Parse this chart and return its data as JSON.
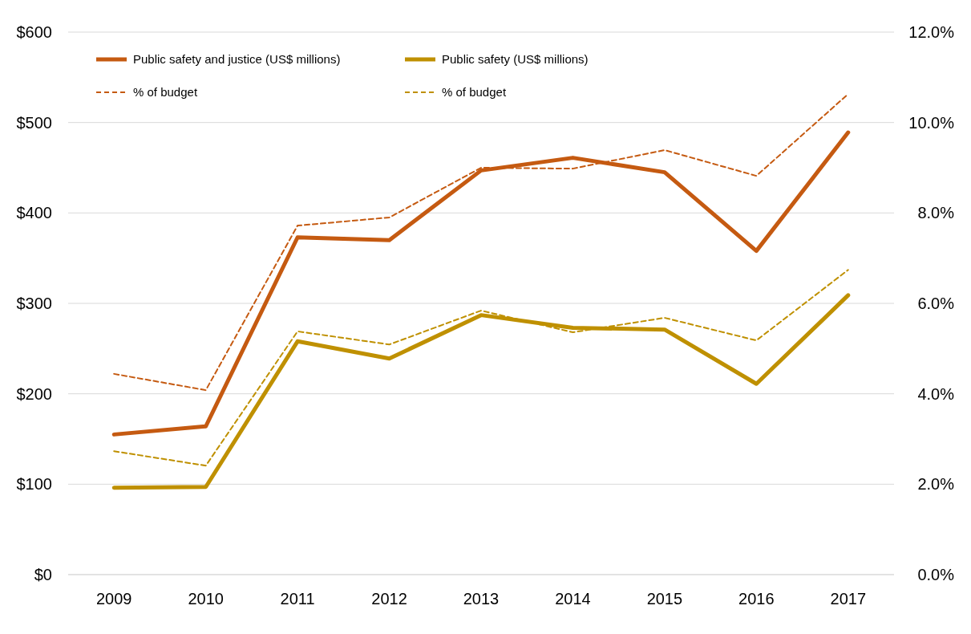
{
  "chart_data": {
    "type": "line",
    "categories": [
      "2009",
      "2010",
      "2011",
      "2012",
      "2013",
      "2014",
      "2015",
      "2016",
      "2017"
    ],
    "series": [
      {
        "name": "Public safety and justice (US$ millions)",
        "color": "#c55a11",
        "line_style": "solid",
        "values": [
          155,
          164,
          373,
          370,
          447,
          461,
          445,
          358,
          489
        ]
      },
      {
        "name": "Public safety (US$ millions)",
        "color": "#bf9000",
        "line_style": "solid",
        "values": [
          96,
          97,
          258,
          239,
          287,
          273,
          271,
          211,
          309
        ]
      },
      {
        "name": "% of budget",
        "color": "#c55a11",
        "line_style": "dashed",
        "axis": "y2",
        "values": [
          4.44,
          4.08,
          7.72,
          7.9,
          9.0,
          8.98,
          9.39,
          8.82,
          10.63
        ]
      },
      {
        "name": "% of budget",
        "color": "#bf9000",
        "line_style": "dashed",
        "axis": "y2",
        "values": [
          2.73,
          2.41,
          5.38,
          5.09,
          5.84,
          5.36,
          5.68,
          5.18,
          6.74
        ]
      }
    ],
    "ylim": [
      0,
      600
    ],
    "yticks": [
      {
        "value": 0,
        "label": "$0"
      },
      {
        "value": 100,
        "label": "$100"
      },
      {
        "value": 200,
        "label": "$200"
      },
      {
        "value": 300,
        "label": "$300"
      },
      {
        "value": 400,
        "label": "$400"
      },
      {
        "value": 500,
        "label": "$500"
      },
      {
        "value": 600,
        "label": "$600"
      }
    ],
    "y2lim": [
      0,
      12
    ],
    "y2ticks": [
      {
        "value": 0,
        "label": "0.0%"
      },
      {
        "value": 2,
        "label": "2.0%"
      },
      {
        "value": 4,
        "label": "4.0%"
      },
      {
        "value": 6,
        "label": "6.0%"
      },
      {
        "value": 8,
        "label": "8.0%"
      },
      {
        "value": 10,
        "label": "10.0%"
      },
      {
        "value": 12,
        "label": "12.0%"
      }
    ],
    "grid": "y",
    "legend": "top"
  }
}
